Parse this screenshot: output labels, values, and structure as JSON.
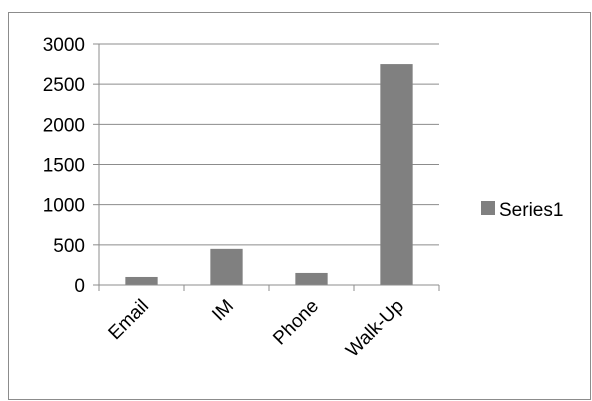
{
  "chart_data": {
    "type": "bar",
    "categories": [
      "Email",
      "IM",
      "Phone",
      "Walk-Up"
    ],
    "series": [
      {
        "name": "Series1",
        "values": [
          100,
          450,
          150,
          2750
        ]
      }
    ],
    "ylim": [
      0,
      3000
    ],
    "yticks": [
      0,
      500,
      1000,
      1500,
      2000,
      2500,
      3000
    ],
    "grid": true,
    "legend_position": "right",
    "colors": {
      "bar": "#808080",
      "grid": "#8c8c8c",
      "axis": "#8c8c8c"
    }
  }
}
